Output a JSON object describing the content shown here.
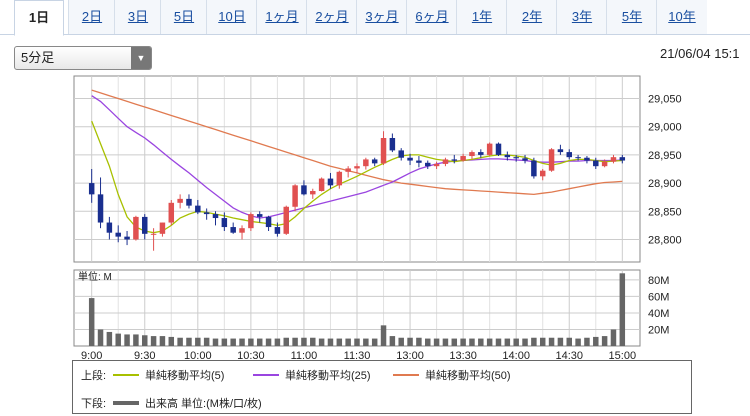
{
  "tabs": [
    "1日",
    "2日",
    "3日",
    "5日",
    "10日",
    "1ヶ月",
    "2ヶ月",
    "3ヶ月",
    "6ヶ月",
    "1年",
    "2年",
    "3年",
    "5年",
    "10年"
  ],
  "active_tab": 0,
  "interval_select": "5分足",
  "datetime": "21/06/04 15:1",
  "volume_unit_label": "単位: M",
  "legend": {
    "upper_label": "上段:",
    "lower_label": "下段:",
    "ma5": "単純移動平均(5)",
    "ma25": "単純移動平均(25)",
    "ma50": "単純移動平均(50)",
    "volume": "出来高 単位:(M株/口/枚)"
  },
  "colors": {
    "up": "#e05050",
    "down": "#1a2f8f",
    "ma5": "#a8c000",
    "ma25": "#9a45e0",
    "ma50": "#e07a50",
    "volume": "#666666"
  },
  "chart_data": [
    {
      "type": "candlestick",
      "x_tick_labels": [
        "9:00",
        "9:30",
        "10:00",
        "10:30",
        "11:00",
        "11:30",
        "13:00",
        "13:30",
        "14:00",
        "14:30",
        "15:00"
      ],
      "y_ticks": [
        28800,
        28850,
        28900,
        28950,
        29000,
        29050
      ],
      "y_tick_labels": [
        "28,800",
        "28,850",
        "28,900",
        "28,950",
        "29,000",
        "29,050"
      ],
      "ylim": [
        28760,
        29090
      ],
      "grid": true,
      "candles": [
        [
          28900,
          28925,
          28865,
          28880
        ],
        [
          28880,
          28910,
          28820,
          28830
        ],
        [
          28830,
          28840,
          28800,
          28812
        ],
        [
          28812,
          28825,
          28795,
          28805
        ],
        [
          28805,
          28815,
          28790,
          28800
        ],
        [
          28800,
          28842,
          28798,
          28840
        ],
        [
          28840,
          28845,
          28800,
          28810
        ],
        [
          28810,
          28820,
          28780,
          28810
        ],
        [
          28810,
          28830,
          28805,
          28830
        ],
        [
          28830,
          28870,
          28825,
          28865
        ],
        [
          28865,
          28880,
          28855,
          28872
        ],
        [
          28872,
          28880,
          28855,
          28860
        ],
        [
          28860,
          28870,
          28845,
          28848
        ],
        [
          28848,
          28855,
          28835,
          28845
        ],
        [
          28845,
          28850,
          28825,
          28838
        ],
        [
          28838,
          28848,
          28815,
          28822
        ],
        [
          28822,
          28830,
          28810,
          28812
        ],
        [
          28812,
          28825,
          28800,
          28820
        ],
        [
          28820,
          28848,
          28815,
          28845
        ],
        [
          28845,
          28850,
          28830,
          28840
        ],
        [
          28840,
          28842,
          28815,
          28822
        ],
        [
          28822,
          28830,
          28805,
          28810
        ],
        [
          28810,
          28860,
          28808,
          28858
        ],
        [
          28858,
          28898,
          28850,
          28896
        ],
        [
          28896,
          28905,
          28878,
          28880
        ],
        [
          28880,
          28890,
          28872,
          28886
        ],
        [
          28886,
          28910,
          28885,
          28908
        ],
        [
          28908,
          28918,
          28890,
          28896
        ],
        [
          28896,
          28922,
          28890,
          28920
        ],
        [
          28920,
          28930,
          28910,
          28926
        ],
        [
          28926,
          28935,
          28918,
          28930
        ],
        [
          28930,
          28945,
          28924,
          28942
        ],
        [
          28942,
          28945,
          28930,
          28935
        ],
        [
          28935,
          28992,
          28932,
          28980
        ],
        [
          28980,
          28988,
          28955,
          28958
        ],
        [
          28958,
          28962,
          28940,
          28945
        ],
        [
          28945,
          28952,
          28932,
          28940
        ],
        [
          28940,
          28948,
          28928,
          28936
        ],
        [
          28936,
          28940,
          28925,
          28930
        ],
        [
          28930,
          28938,
          28925,
          28934
        ],
        [
          28934,
          28945,
          28930,
          28942
        ],
        [
          28942,
          28950,
          28935,
          28940
        ],
        [
          28940,
          28952,
          28938,
          28948
        ],
        [
          28948,
          28958,
          28942,
          28955
        ],
        [
          28955,
          28960,
          28945,
          28950
        ],
        [
          28950,
          28972,
          28948,
          28970
        ],
        [
          28970,
          28972,
          28948,
          28950
        ],
        [
          28950,
          28956,
          28940,
          28946
        ],
        [
          28946,
          28950,
          28938,
          28944
        ],
        [
          28944,
          28950,
          28935,
          28940
        ],
        [
          28940,
          28945,
          28908,
          28912
        ],
        [
          28912,
          28925,
          28905,
          28922
        ],
        [
          28922,
          28962,
          28920,
          28960
        ],
        [
          28960,
          28968,
          28950,
          28955
        ],
        [
          28955,
          28960,
          28942,
          28946
        ],
        [
          28946,
          28950,
          28940,
          28945
        ],
        [
          28945,
          28948,
          28935,
          28940
        ],
        [
          28940,
          28945,
          28925,
          28930
        ],
        [
          28930,
          28942,
          28928,
          28938
        ],
        [
          28938,
          28950,
          28935,
          28946
        ],
        [
          28946,
          28950,
          28935,
          28940
        ]
      ],
      "ma5": [
        29010,
        28970,
        28930,
        28880,
        28840,
        28822,
        28815,
        28812,
        28815,
        28825,
        28838,
        28845,
        28850,
        28848,
        28845,
        28842,
        28838,
        28835,
        28832,
        28830,
        28828,
        28825,
        28828,
        28840,
        28855,
        28868,
        28880,
        28890,
        28898,
        28905,
        28912,
        28920,
        28928,
        28935,
        28942,
        28948,
        28950,
        28950,
        28946,
        28942,
        28940,
        28938,
        28940,
        28942,
        28945,
        28948,
        28950,
        28950,
        28948,
        28946,
        28940,
        28935,
        28932,
        28935,
        28940,
        28942,
        28942,
        28940,
        28938,
        28939,
        28940
      ],
      "ma25": [
        29055,
        29045,
        29030,
        29015,
        29000,
        28990,
        28980,
        28968,
        28955,
        28942,
        28930,
        28918,
        28905,
        28892,
        28880,
        28868,
        28856,
        28848,
        28842,
        28838,
        28840,
        28844,
        28848,
        28852,
        28856,
        28860,
        28864,
        28868,
        28872,
        28876,
        28880,
        28884,
        28890,
        28896,
        28902,
        28910,
        28918,
        28925,
        28930,
        28934,
        28937,
        28939,
        28940,
        28941,
        28942,
        28943,
        28943,
        28942,
        28941,
        28940,
        28938,
        28937,
        28937,
        28938,
        28939,
        28939,
        28940,
        28940,
        28940,
        28940,
        28941
      ],
      "ma50": [
        29065,
        29060,
        29055,
        29050,
        29045,
        29040,
        29035,
        29030,
        29025,
        29020,
        29015,
        29010,
        29005,
        29000,
        28995,
        28990,
        28985,
        28980,
        28975,
        28970,
        28965,
        28960,
        28955,
        28950,
        28945,
        28940,
        28935,
        28930,
        28926,
        28922,
        28918,
        28914,
        28910,
        28906,
        28903,
        28900,
        28898,
        28896,
        28894,
        28892,
        28890,
        28889,
        28888,
        28887,
        28886,
        28885,
        28884,
        28883,
        28882,
        28881,
        28880,
        28882,
        28884,
        28887,
        28890,
        28893,
        28896,
        28899,
        28901,
        28902,
        28903
      ]
    },
    {
      "type": "bar",
      "series_label": "出来高",
      "unit": "M",
      "y_ticks": [
        20,
        40,
        60,
        80
      ],
      "y_tick_labels": [
        "20M",
        "40M",
        "60M",
        "80M"
      ],
      "ylim": [
        0,
        92
      ],
      "values": [
        58,
        20,
        17,
        15,
        14,
        14,
        13,
        12,
        12,
        11,
        10,
        10,
        10,
        10,
        9,
        9,
        9,
        9,
        9,
        9,
        9,
        9,
        10,
        10,
        10,
        10,
        9,
        9,
        9,
        9,
        9,
        9,
        9,
        25,
        12,
        10,
        10,
        10,
        9,
        9,
        9,
        9,
        9,
        9,
        9,
        9,
        9,
        9,
        9,
        9,
        10,
        10,
        10,
        10,
        10,
        9,
        10,
        11,
        12,
        20,
        88
      ]
    }
  ]
}
